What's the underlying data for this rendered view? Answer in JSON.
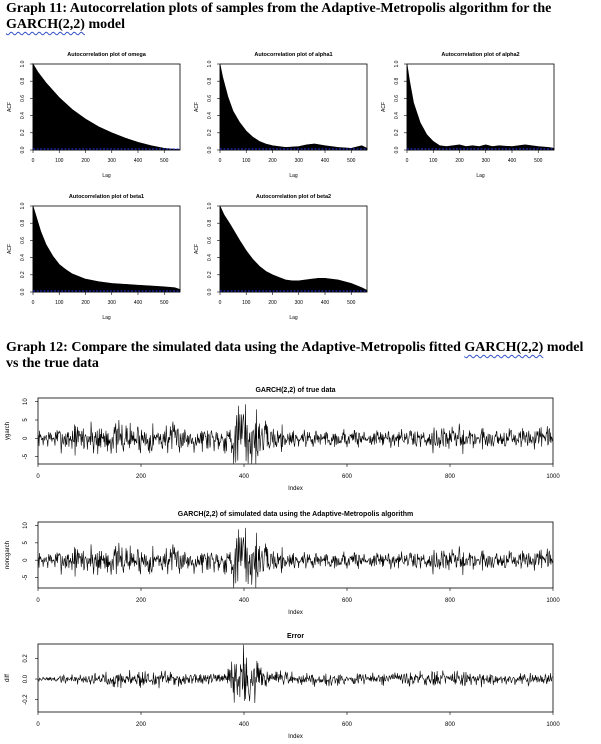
{
  "headings": {
    "graph11_prefix": "Graph 11: Autocorrelation plots of samples from the Adaptive-Metropolis algorithm for the ",
    "graph11_model": "GARCH(2,2)",
    "graph11_suffix": " model",
    "graph12_prefix": "Graph 12: Compare the simulated data using the Adaptive-Metropolis fitted ",
    "graph12_model": "GARCH(2,2)",
    "graph12_suffix": " model vs the true data"
  },
  "colors": {
    "bars": "#000000",
    "reference_line": "#2233dd",
    "line": "#000000"
  },
  "chart_data": [
    {
      "type": "area",
      "title": "Autocorrelation plot of omega",
      "xlabel": "Lag",
      "ylabel": "ACF",
      "xlim": [
        0,
        560
      ],
      "ylim": [
        0,
        1
      ],
      "xticks": [
        0,
        100,
        200,
        300,
        400,
        500
      ],
      "yticks": [
        0,
        0.2,
        0.4,
        0.6,
        0.8,
        1
      ],
      "xtick_labels": [
        "0",
        "100",
        "200",
        "300",
        "400",
        "500"
      ],
      "ytick_labels": [
        "0.0",
        "0.2",
        "0.4",
        "0.6",
        "0.8",
        "1.0"
      ],
      "x": [
        0,
        20,
        50,
        100,
        150,
        200,
        250,
        300,
        350,
        400,
        450,
        500,
        540,
        560
      ],
      "y": [
        1.0,
        0.9,
        0.78,
        0.61,
        0.47,
        0.36,
        0.27,
        0.2,
        0.14,
        0.09,
        0.05,
        0.02,
        0.01,
        0.005
      ]
    },
    {
      "type": "area",
      "title": "Autocorrelation plot of alpha1",
      "xlabel": "Lag",
      "ylabel": "ACF",
      "xlim": [
        0,
        560
      ],
      "ylim": [
        0,
        1
      ],
      "xticks": [
        0,
        100,
        200,
        300,
        400,
        500
      ],
      "yticks": [
        0,
        0.2,
        0.4,
        0.6,
        0.8,
        1
      ],
      "xtick_labels": [
        "0",
        "100",
        "200",
        "300",
        "400",
        "500"
      ],
      "ytick_labels": [
        "0.0",
        "0.2",
        "0.4",
        "0.6",
        "0.8",
        "1.0"
      ],
      "x": [
        0,
        10,
        30,
        50,
        75,
        100,
        125,
        150,
        175,
        200,
        250,
        300,
        330,
        360,
        400,
        450,
        500,
        540,
        560
      ],
      "y": [
        1.0,
        0.85,
        0.62,
        0.45,
        0.32,
        0.22,
        0.15,
        0.1,
        0.07,
        0.05,
        0.03,
        0.04,
        0.06,
        0.07,
        0.05,
        0.03,
        0.02,
        0.05,
        0.02
      ]
    },
    {
      "type": "area",
      "title": "Autocorrelation plot of alpha2",
      "xlabel": "Lag",
      "ylabel": "ACF",
      "xlim": [
        0,
        560
      ],
      "ylim": [
        0,
        1
      ],
      "xticks": [
        0,
        100,
        200,
        300,
        400,
        500
      ],
      "yticks": [
        0,
        0.2,
        0.4,
        0.6,
        0.8,
        1
      ],
      "xtick_labels": [
        "0",
        "100",
        "200",
        "300",
        "400",
        "500"
      ],
      "ytick_labels": [
        "0.0",
        "0.2",
        "0.4",
        "0.6",
        "0.8",
        "1.0"
      ],
      "x": [
        0,
        10,
        25,
        50,
        75,
        100,
        125,
        150,
        175,
        200,
        225,
        250,
        275,
        300,
        325,
        350,
        400,
        450,
        500,
        540,
        560
      ],
      "y": [
        1.0,
        0.8,
        0.55,
        0.32,
        0.18,
        0.1,
        0.05,
        0.04,
        0.05,
        0.06,
        0.04,
        0.05,
        0.04,
        0.06,
        0.04,
        0.05,
        0.04,
        0.06,
        0.04,
        0.03,
        0.02
      ]
    },
    {
      "type": "area",
      "title": "Autocorrelation plot of beta1",
      "xlabel": "Lag",
      "ylabel": "ACF",
      "xlim": [
        0,
        560
      ],
      "ylim": [
        0,
        1
      ],
      "xticks": [
        0,
        100,
        200,
        300,
        400,
        500
      ],
      "yticks": [
        0,
        0.2,
        0.4,
        0.6,
        0.8,
        1
      ],
      "xtick_labels": [
        "0",
        "100",
        "200",
        "300",
        "400",
        "500"
      ],
      "ytick_labels": [
        "0.0",
        "0.2",
        "0.4",
        "0.6",
        "0.8",
        "1.0"
      ],
      "x": [
        0,
        10,
        30,
        50,
        75,
        100,
        125,
        150,
        175,
        200,
        250,
        300,
        350,
        400,
        450,
        500,
        540,
        560
      ],
      "y": [
        1.0,
        0.9,
        0.7,
        0.55,
        0.42,
        0.32,
        0.26,
        0.21,
        0.18,
        0.15,
        0.12,
        0.1,
        0.09,
        0.08,
        0.07,
        0.06,
        0.05,
        0.03
      ]
    },
    {
      "type": "area",
      "title": "Autocorrelation plot of beta2",
      "xlabel": "Lag",
      "ylabel": "ACF",
      "xlim": [
        0,
        560
      ],
      "ylim": [
        0,
        1
      ],
      "xticks": [
        0,
        100,
        200,
        300,
        400,
        500
      ],
      "yticks": [
        0,
        0.2,
        0.4,
        0.6,
        0.8,
        1
      ],
      "xtick_labels": [
        "0",
        "100",
        "200",
        "300",
        "400",
        "500"
      ],
      "ytick_labels": [
        "0.0",
        "0.2",
        "0.4",
        "0.6",
        "0.8",
        "1.0"
      ],
      "x": [
        0,
        15,
        40,
        75,
        100,
        125,
        150,
        175,
        200,
        225,
        250,
        275,
        300,
        325,
        350,
        375,
        400,
        450,
        500,
        540,
        560
      ],
      "y": [
        1.0,
        0.9,
        0.78,
        0.6,
        0.48,
        0.38,
        0.3,
        0.24,
        0.2,
        0.17,
        0.14,
        0.13,
        0.13,
        0.14,
        0.15,
        0.16,
        0.16,
        0.14,
        0.1,
        0.05,
        0.02
      ]
    },
    {
      "type": "line",
      "title": "GARCH(2,2) of true data",
      "xlabel": "Index",
      "ylabel": "ygarch",
      "xlim": [
        0,
        1000
      ],
      "ylim": [
        -7,
        11
      ],
      "xticks": [
        0,
        200,
        400,
        600,
        800,
        1000
      ],
      "yticks": [
        -5,
        0,
        5,
        10
      ],
      "xtick_labels": [
        "0",
        "200",
        "400",
        "600",
        "800",
        "1000"
      ],
      "ytick_labels": [
        "-5",
        "0",
        "5",
        "10"
      ],
      "n": 1000,
      "scale": 1,
      "seed": 7,
      "envelope_x": [
        0,
        100,
        180,
        260,
        300,
        360,
        400,
        440,
        500,
        600,
        700,
        800,
        900,
        1000
      ],
      "envelope_y": [
        1.5,
        3.5,
        3.0,
        2.8,
        2.5,
        2.5,
        9,
        3,
        2,
        1.8,
        1.6,
        2.5,
        2.0,
        2.0
      ]
    },
    {
      "type": "line",
      "title": "GARCH(2,2) of simulated data using the Adaptive-Metropolis algorithm",
      "xlabel": "Index",
      "ylabel": "noncgarch",
      "xlim": [
        0,
        1000
      ],
      "ylim": [
        -8,
        11
      ],
      "xticks": [
        0,
        200,
        400,
        600,
        800,
        1000
      ],
      "yticks": [
        -5,
        0,
        5,
        10
      ],
      "xtick_labels": [
        "0",
        "200",
        "400",
        "600",
        "800",
        "1000"
      ],
      "ytick_labels": [
        "-5",
        "0",
        "5",
        "10"
      ],
      "n": 1000,
      "scale": 1,
      "seed": 7,
      "envelope_x": [
        0,
        100,
        180,
        260,
        300,
        360,
        400,
        440,
        500,
        600,
        700,
        800,
        900,
        1000
      ],
      "envelope_y": [
        1.5,
        3.5,
        3.0,
        2.8,
        2.5,
        2.5,
        9,
        3,
        2,
        1.8,
        1.6,
        2.5,
        2.0,
        2.0
      ]
    },
    {
      "type": "line",
      "title": "Error",
      "xlabel": "Index",
      "ylabel": "diff",
      "xlim": [
        0,
        1000
      ],
      "ylim": [
        -0.32,
        0.34
      ],
      "xticks": [
        0,
        200,
        400,
        600,
        800,
        1000
      ],
      "yticks": [
        -0.2,
        0,
        0.2
      ],
      "xtick_labels": [
        "0",
        "200",
        "400",
        "600",
        "800",
        "1000"
      ],
      "ytick_labels": [
        "-0.2",
        "0.0",
        "0.2"
      ],
      "n": 1000,
      "scale": 0.028,
      "seed": 19,
      "envelope_x": [
        0,
        100,
        180,
        260,
        300,
        360,
        400,
        440,
        500,
        600,
        700,
        800,
        900,
        1000
      ],
      "envelope_y": [
        0.6,
        1.5,
        2.2,
        2.0,
        1.6,
        1.2,
        10,
        2,
        1.5,
        1.6,
        1.5,
        2.0,
        1.5,
        1.2
      ]
    }
  ]
}
